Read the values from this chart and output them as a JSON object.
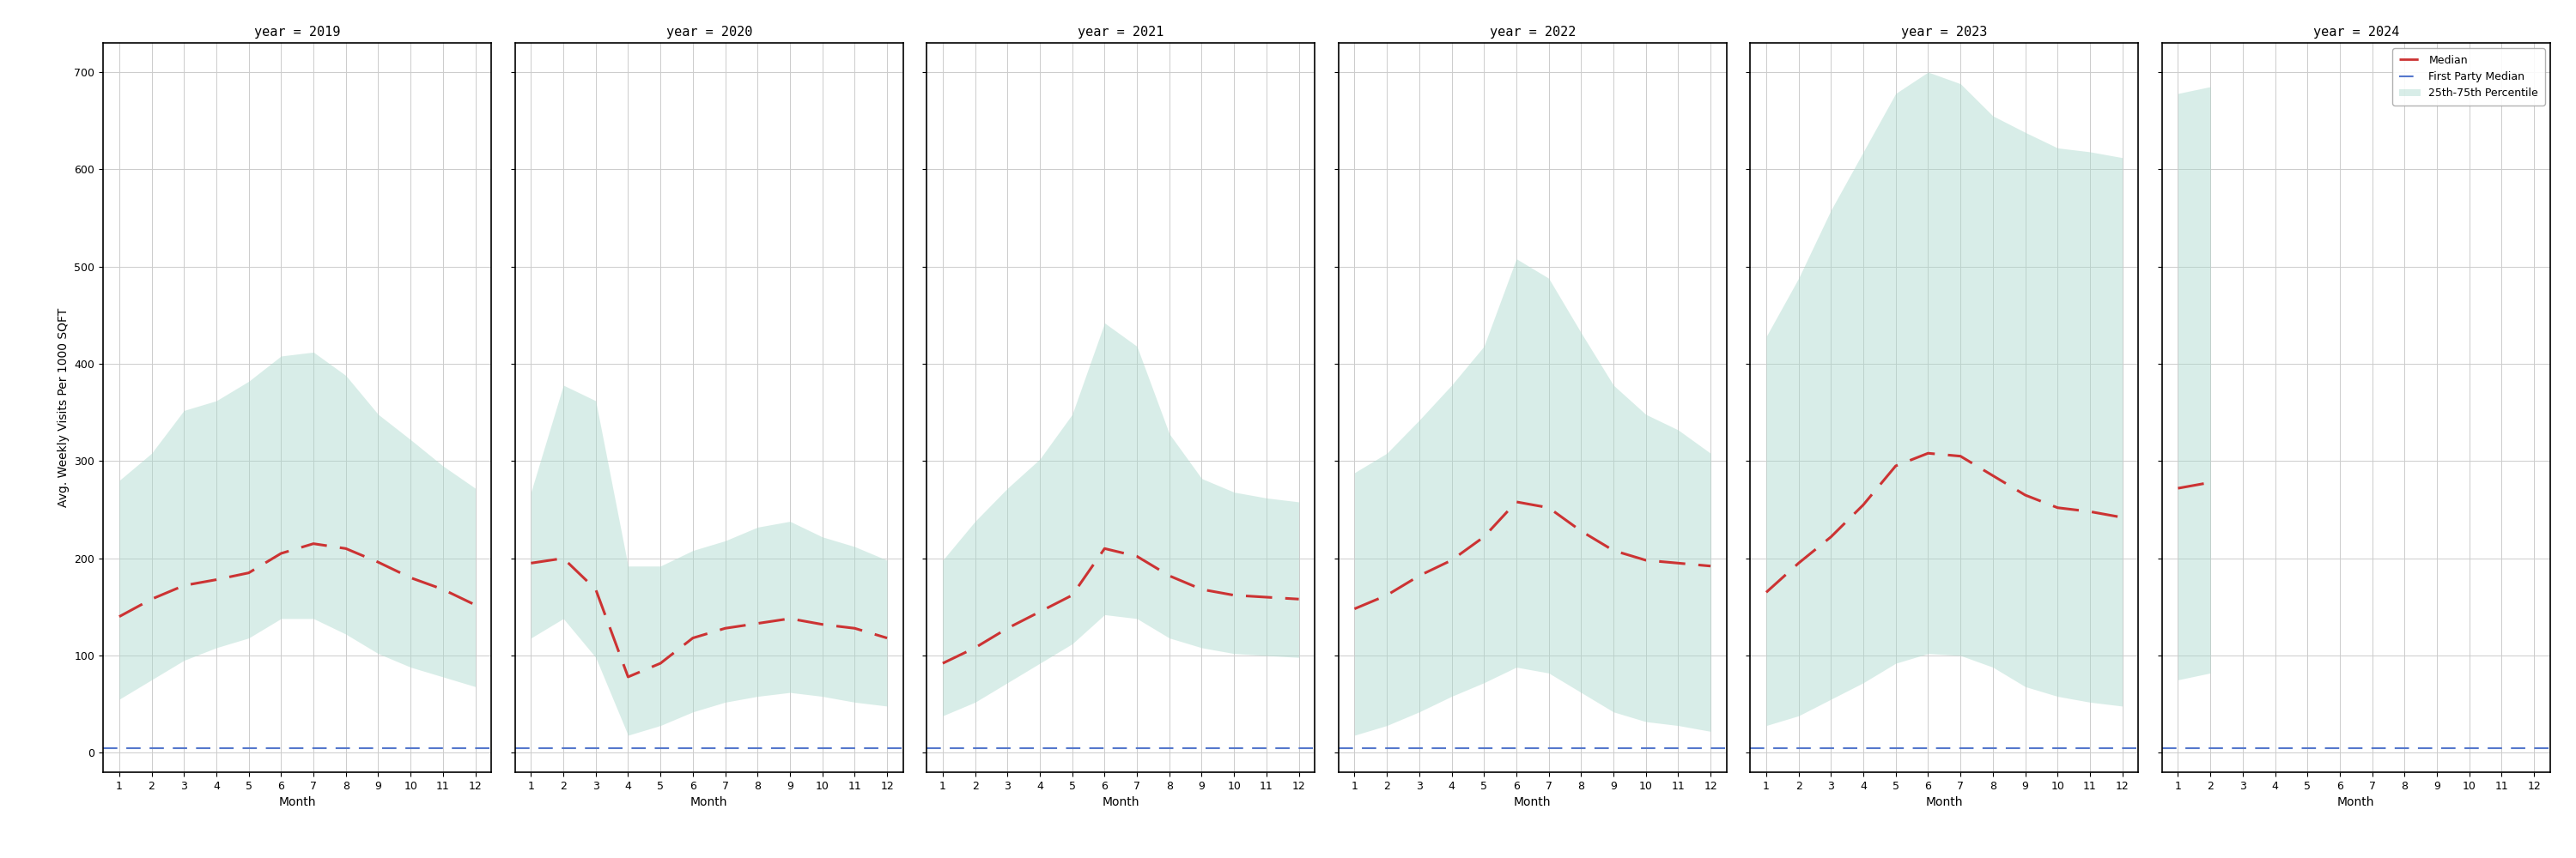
{
  "years": [
    2019,
    2020,
    2021,
    2022,
    2023,
    2024
  ],
  "months": [
    1,
    2,
    3,
    4,
    5,
    6,
    7,
    8,
    9,
    10,
    11,
    12
  ],
  "ylabel": "Avg. Weekly Visits Per 1000 SQFT",
  "xlabel": "Month",
  "ylim": [
    -20,
    730
  ],
  "yticks": [
    0,
    100,
    200,
    300,
    400,
    500,
    600,
    700
  ],
  "median_color": "#cc3333",
  "fp_median_color": "#5577cc",
  "band_color": "#aad9cc",
  "band_alpha": 0.45,
  "fp_median_value": 5,
  "data": {
    "2019": {
      "median": [
        140,
        158,
        172,
        178,
        185,
        205,
        215,
        210,
        196,
        180,
        168,
        152
      ],
      "p25": [
        55,
        75,
        95,
        108,
        118,
        138,
        138,
        122,
        102,
        88,
        78,
        68
      ],
      "p75": [
        280,
        308,
        352,
        362,
        382,
        408,
        412,
        388,
        348,
        322,
        295,
        272
      ]
    },
    "2020": {
      "median": [
        195,
        200,
        168,
        78,
        92,
        118,
        128,
        133,
        138,
        132,
        128,
        118
      ],
      "p25": [
        118,
        138,
        98,
        18,
        28,
        42,
        52,
        58,
        62,
        58,
        52,
        48
      ],
      "p75": [
        268,
        378,
        362,
        192,
        192,
        208,
        218,
        232,
        238,
        222,
        212,
        198
      ]
    },
    "2021": {
      "median": [
        92,
        108,
        128,
        145,
        162,
        210,
        202,
        182,
        168,
        162,
        160,
        158
      ],
      "p25": [
        38,
        52,
        72,
        92,
        112,
        142,
        138,
        118,
        108,
        102,
        100,
        98
      ],
      "p75": [
        198,
        238,
        272,
        302,
        348,
        442,
        418,
        328,
        282,
        268,
        262,
        258
      ]
    },
    "2022": {
      "median": [
        148,
        162,
        182,
        198,
        222,
        258,
        252,
        228,
        208,
        198,
        195,
        192
      ],
      "p25": [
        18,
        28,
        42,
        58,
        72,
        88,
        82,
        62,
        42,
        32,
        28,
        22
      ],
      "p75": [
        288,
        308,
        342,
        378,
        418,
        508,
        488,
        432,
        378,
        348,
        332,
        308
      ]
    },
    "2023": {
      "median": [
        165,
        195,
        222,
        255,
        295,
        308,
        305,
        285,
        265,
        252,
        248,
        242
      ],
      "p25": [
        28,
        38,
        55,
        72,
        92,
        102,
        100,
        88,
        68,
        58,
        52,
        48
      ],
      "p75": [
        428,
        488,
        558,
        618,
        678,
        700,
        688,
        655,
        638,
        622,
        618,
        612
      ]
    },
    "2024": {
      "median": [
        272,
        278,
        null,
        null,
        null,
        null,
        null,
        null,
        null,
        null,
        null,
        null
      ],
      "p25": [
        75,
        82,
        null,
        null,
        null,
        null,
        null,
        null,
        null,
        null,
        null,
        null
      ],
      "p75": [
        678,
        685,
        null,
        null,
        null,
        null,
        null,
        null,
        null,
        null,
        null,
        null
      ]
    }
  },
  "legend": {
    "median_label": "Median",
    "fp_label": "First Party Median",
    "band_label": "25th-75th Percentile"
  },
  "bg_color": "#ffffff",
  "grid_color": "#cccccc",
  "title_fontsize": 11,
  "tick_fontsize": 9,
  "label_fontsize": 10
}
